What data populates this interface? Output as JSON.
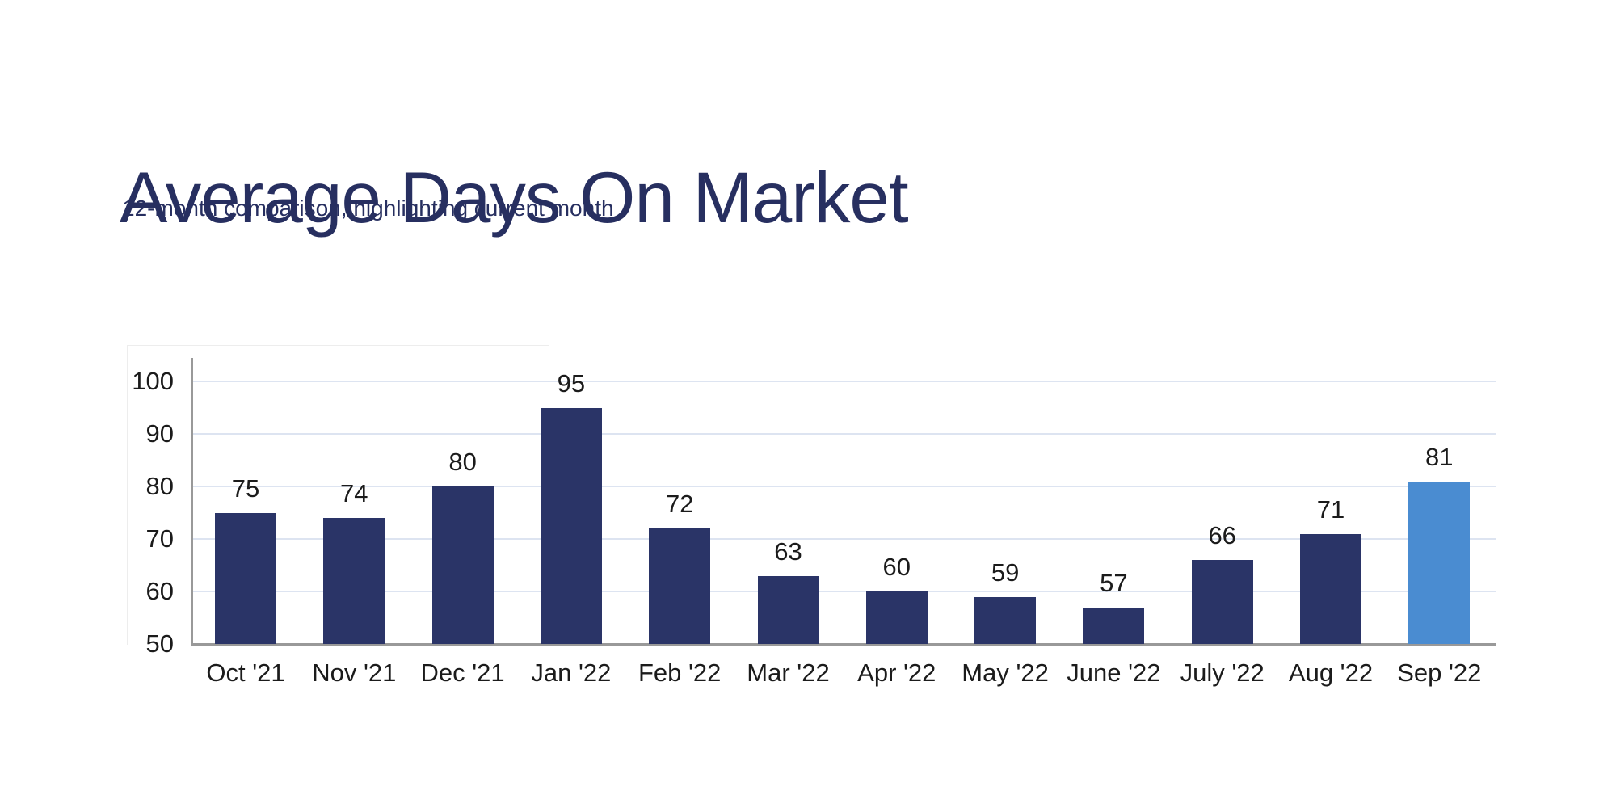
{
  "header": {
    "title": "Average Days On Market",
    "subtitle": "12-month comparison, highlighting current month",
    "title_color": "#272f60"
  },
  "chart_data": {
    "type": "bar",
    "title": "Average Days On Market",
    "subtitle": "12-month comparison, highlighting current month",
    "categories": [
      "Oct '21",
      "Nov '21",
      "Dec '21",
      "Jan '22",
      "Feb '22",
      "Mar '22",
      "Apr '22",
      "May '22",
      "June '22",
      "July '22",
      "Aug '22",
      "Sep '22"
    ],
    "values": [
      75,
      74,
      80,
      95,
      72,
      63,
      60,
      59,
      57,
      66,
      71,
      81
    ],
    "highlight_index": 11,
    "value_labels_shown": true,
    "xlabel": "",
    "ylabel": "",
    "ylim": [
      50,
      105
    ],
    "yticks": [
      50,
      60,
      70,
      80,
      90,
      100
    ],
    "gridlines": [
      60,
      70,
      80,
      90,
      100
    ],
    "grid_on": true,
    "legend_position": "none",
    "colors": {
      "bar": "#2a3467",
      "highlight_bar": "#4a8cd1",
      "gridline": "#dde4f1",
      "axis": "#999999",
      "tick_label": "#1b1b1b",
      "value_label": "#1b1b1b"
    }
  }
}
